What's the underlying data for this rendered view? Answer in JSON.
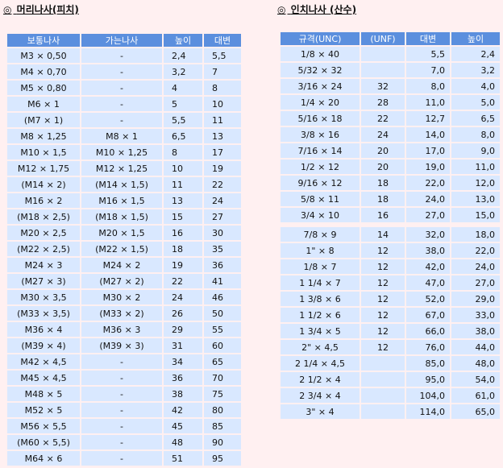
{
  "left": {
    "bullet": "◎",
    "title": "머리나사(피치)",
    "headers": [
      "보통나사",
      "가는나사",
      "높이",
      "대변"
    ],
    "rows": [
      [
        "M3 × 0,50",
        "-",
        "2,4",
        "5,5"
      ],
      [
        "M4 × 0,70",
        "-",
        "3,2",
        "7"
      ],
      [
        "M5 × 0,80",
        "-",
        "4",
        "8"
      ],
      [
        "M6 × 1",
        "-",
        "5",
        "10"
      ],
      [
        "(M7 × 1)",
        "-",
        "5,5",
        "11"
      ],
      [
        "M8 × 1,25",
        "M8 × 1",
        "6,5",
        "13"
      ],
      [
        "M10 × 1,5",
        "M10 × 1,25",
        "8",
        "17"
      ],
      [
        "M12 × 1,75",
        "M12 × 1,25",
        "10",
        "19"
      ],
      [
        "(M14 × 2)",
        "(M14 × 1,5)",
        "11",
        "22"
      ],
      [
        "M16 × 2",
        "M16 × 1,5",
        "13",
        "24"
      ],
      [
        "(M18 × 2,5)",
        "(M18 × 1,5)",
        "15",
        "27"
      ],
      [
        "M20 × 2,5",
        "M20 × 1,5",
        "16",
        "30"
      ],
      [
        "(M22 × 2,5)",
        "(M22 × 1,5)",
        "18",
        "35"
      ],
      [
        "M24 × 3",
        "M24 × 2",
        "19",
        "36"
      ],
      [
        "(M27 × 3)",
        "(M27 × 2)",
        "22",
        "41"
      ],
      [
        "M30 × 3,5",
        "M30 × 2",
        "24",
        "46"
      ],
      [
        "(M33 × 3,5)",
        "(M33 × 2)",
        "26",
        "50"
      ],
      [
        "M36 × 4",
        "M36 × 3",
        "29",
        "55"
      ],
      [
        "(M39 × 4)",
        "(M39 × 3)",
        "31",
        "60"
      ],
      [
        "M42 × 4,5",
        "-",
        "34",
        "65"
      ],
      [
        "M45 × 4,5",
        "-",
        "36",
        "70"
      ],
      [
        "M48 × 5",
        "-",
        "38",
        "75"
      ],
      [
        "M52 × 5",
        "-",
        "42",
        "80"
      ],
      [
        "M56 × 5,5",
        "-",
        "45",
        "85"
      ],
      [
        "(M60 × 5,5)",
        "-",
        "48",
        "90"
      ],
      [
        "M64 × 6",
        "-",
        "51",
        "95"
      ]
    ]
  },
  "right": {
    "bullet": "◎",
    "title": "인치나사 (산수)",
    "headers": [
      "규격(UNC)",
      "(UNF)",
      "대변",
      "높이"
    ],
    "rows": [
      [
        "1/8 × 40",
        "",
        "5,5",
        "2,4"
      ],
      [
        "5/32 × 32",
        "",
        "7,0",
        "3,2"
      ],
      [
        "3/16 × 24",
        "32",
        "8,0",
        "4,0"
      ],
      [
        "1/4 × 20",
        "28",
        "11,0",
        "5,0"
      ],
      [
        "5/16 × 18",
        "22",
        "12,7",
        "6,5"
      ],
      [
        "3/8 × 16",
        "24",
        "14,0",
        "8,0"
      ],
      [
        "7/16 × 14",
        "20",
        "17,0",
        "9,0"
      ],
      [
        "1/2 × 12",
        "20",
        "19,0",
        "11,0"
      ],
      [
        "9/16 × 12",
        "18",
        "22,0",
        "12,0"
      ],
      [
        "5/8 × 11",
        "18",
        "24,0",
        "13,0"
      ],
      [
        "3/4 × 10",
        "16",
        "27,0",
        "15,0"
      ],
      [
        "7/8 × 9",
        "14",
        "32,0",
        "18,0"
      ],
      [
        "1\" × 8",
        "12",
        "38,0",
        "22,0"
      ],
      [
        "1/8 × 7",
        "12",
        "42,0",
        "24,0"
      ],
      [
        "1 1/4 × 7",
        "12",
        "47,0",
        "27,0"
      ],
      [
        "1 3/8 × 6",
        "12",
        "52,0",
        "29,0"
      ],
      [
        "1 1/2 × 6",
        "12",
        "67,0",
        "33,0"
      ],
      [
        "1 3/4 × 5",
        "12",
        "66,0",
        "38,0"
      ],
      [
        "2\" × 4,5",
        "12",
        "76,0",
        "44,0"
      ],
      [
        "2 1/4 × 4,5",
        "",
        "85,0",
        "48,0"
      ],
      [
        "2 1/2 × 4",
        "",
        "95,0",
        "54,0"
      ],
      [
        "2 3/4 × 4",
        "",
        "104,0",
        "61,0"
      ],
      [
        "3\" × 4",
        "",
        "114,0",
        "65,0"
      ]
    ]
  }
}
